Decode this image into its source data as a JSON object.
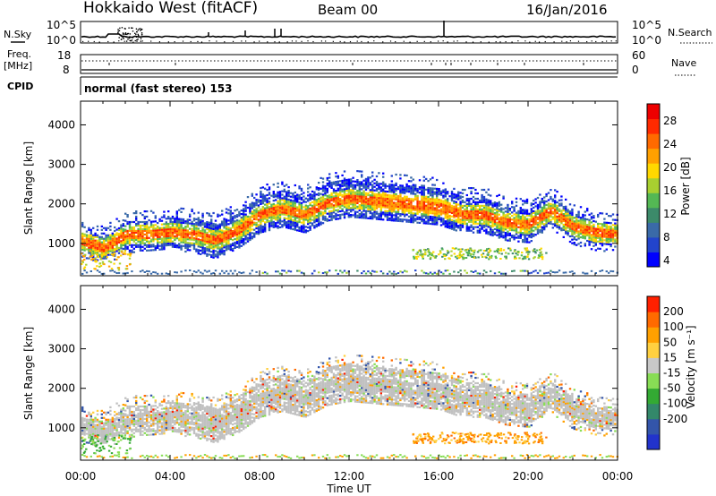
{
  "header": {
    "site": "Hokkaido West (fitACF)",
    "beam": "Beam 00",
    "date": "16/Jan/2016"
  },
  "noise_panel": {
    "left_label": "N.Sky",
    "right_label": "N.Search",
    "left_ticks": [
      "10^5",
      "10^0"
    ],
    "right_ticks": [
      "10^5",
      "10^0"
    ]
  },
  "freq_panel": {
    "left_label_1": "Freq.",
    "left_label_2": "[MHz]",
    "right_label": "Nave",
    "left_ticks": [
      "18",
      "8"
    ],
    "right_ticks": [
      "60",
      "0"
    ]
  },
  "cpid_panel": {
    "label": "CPID",
    "text": "normal (fast stereo) 153"
  },
  "power_panel": {
    "ylabel": "Slant Range [km]",
    "yticks": [
      "4000",
      "3000",
      "2000",
      "1000"
    ],
    "colorbar_label": "Power [dB]",
    "colorbar_ticks": [
      "28",
      "24",
      "20",
      "16",
      "12",
      "8",
      "4"
    ],
    "colorbar_colors": [
      "#0000ff",
      "#2244cc",
      "#3a6aa8",
      "#3c8a6a",
      "#54b854",
      "#a8d030",
      "#ffd800",
      "#ffa000",
      "#ff6a00",
      "#ff2a00",
      "#ee0000"
    ]
  },
  "velocity_panel": {
    "ylabel": "Slant Range [km]",
    "yticks": [
      "4000",
      "3000",
      "2000",
      "1000"
    ],
    "colorbar_label": "Velocity [m s⁻¹]",
    "colorbar_ticks": [
      "200",
      "100",
      "50",
      "15",
      "-15",
      "-50",
      "-100",
      "-200"
    ],
    "colorbar_colors": [
      "#2233cc",
      "#3355aa",
      "#33886a",
      "#33aa33",
      "#88dd55",
      "#c8c8c8",
      "#ffd040",
      "#ffa000",
      "#ff6a00",
      "#ff2000"
    ]
  },
  "xaxis": {
    "ticks": [
      "00:00",
      "04:00",
      "08:00",
      "12:00",
      "16:00",
      "20:00",
      "00:00"
    ],
    "label": "Time UT"
  },
  "chart_data": [
    {
      "type": "heatmap",
      "name_key": "power",
      "xlabel": "Time UT",
      "ylabel": "Slant Range [km]",
      "xlim": [
        0,
        24
      ],
      "ylim": [
        180,
        4600
      ],
      "colorbar": {
        "label": "Power [dB]",
        "range": [
          0,
          30
        ]
      },
      "echo_band_center_km": [
        [
          0,
          1100
        ],
        [
          1,
          900
        ],
        [
          2,
          1250
        ],
        [
          3,
          1250
        ],
        [
          4,
          1300
        ],
        [
          5,
          1250
        ],
        [
          6,
          1100
        ],
        [
          7,
          1350
        ],
        [
          8,
          1750
        ],
        [
          9,
          1900
        ],
        [
          10,
          1750
        ],
        [
          11,
          2050
        ],
        [
          12,
          2150
        ],
        [
          13,
          2100
        ],
        [
          14,
          2050
        ],
        [
          15,
          2000
        ],
        [
          16,
          1950
        ],
        [
          17,
          1750
        ],
        [
          18,
          1750
        ],
        [
          19,
          1550
        ],
        [
          20,
          1500
        ],
        [
          21,
          1850
        ],
        [
          22,
          1450
        ],
        [
          23,
          1300
        ],
        [
          24,
          1250
        ]
      ]
    },
    {
      "type": "heatmap",
      "name_key": "velocity",
      "xlabel": "Time UT",
      "ylabel": "Slant Range [km]",
      "xlim": [
        0,
        24
      ],
      "ylim": [
        180,
        4600
      ],
      "colorbar": {
        "label": "Velocity [m s⁻¹]",
        "range": [
          -200,
          200
        ]
      }
    }
  ]
}
